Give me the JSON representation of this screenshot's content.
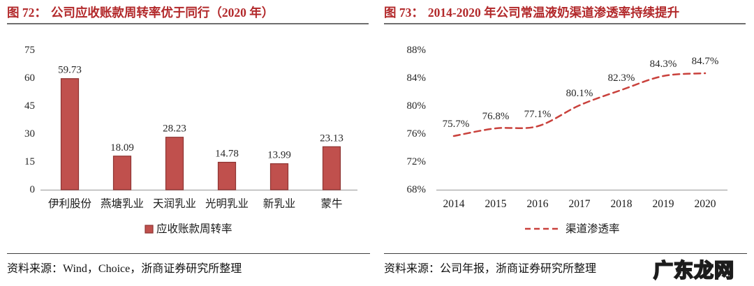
{
  "colors": {
    "title_red": "#B2282A",
    "bar_fill": "#C0504D",
    "bar_stroke": "#8E3432",
    "line_red": "#C9413C",
    "axis_gray": "#A6A6A6",
    "text_dark": "#262626"
  },
  "left_panel": {
    "figure_label": "图 72：",
    "title": "公司应收账款周转率优于同行（2020 年）",
    "source": "资料来源：Wind，Choice，浙商证券研究所整理"
  },
  "right_panel": {
    "figure_label": "图 73：",
    "title": "2014-2020 年公司常温液奶渠道渗透率持续提升",
    "source": "资料来源：公司年报，浙商证券研究所整理"
  },
  "watermark": "广东龙网",
  "chart_data": [
    {
      "type": "bar",
      "title": "图 72：公司应收账款周转率优于同行（2020 年）",
      "categories": [
        "伊利股份",
        "燕塘乳业",
        "天润乳业",
        "光明乳业",
        "新乳业",
        "蒙牛"
      ],
      "values": [
        59.73,
        18.09,
        28.23,
        14.78,
        13.99,
        23.13
      ],
      "value_labels": [
        "59.73",
        "18.09",
        "28.23",
        "14.78",
        "13.99",
        "23.13"
      ],
      "series_name": "应收账款周转率",
      "xlabel": "",
      "ylabel": "",
      "ylim": [
        0,
        75
      ],
      "yticks": [
        "0",
        "15",
        "30",
        "45",
        "60",
        "75"
      ],
      "ytick_values": [
        0,
        15,
        30,
        45,
        60,
        75
      ],
      "grid": false,
      "legend_position": "bottom"
    },
    {
      "type": "line",
      "title": "图 73：2014-2020 年公司常温液奶渠道渗透率持续提升",
      "x": [
        "2014",
        "2015",
        "2016",
        "2017",
        "2018",
        "2019",
        "2020"
      ],
      "values": [
        75.7,
        76.8,
        77.1,
        80.1,
        82.3,
        84.3,
        84.7
      ],
      "point_labels": [
        "75.7%",
        "76.8%",
        "77.1%",
        "80.1%",
        "82.3%",
        "84.3%",
        "84.7%"
      ],
      "series_name": "渠道渗透率",
      "line_style": "dashed",
      "xlabel": "",
      "ylabel": "",
      "ylim": [
        68,
        88
      ],
      "yticks": [
        "68%",
        "72%",
        "76%",
        "80%",
        "84%",
        "88%"
      ],
      "ytick_values": [
        68,
        72,
        76,
        80,
        84,
        88
      ],
      "grid": false,
      "legend_position": "bottom"
    }
  ]
}
